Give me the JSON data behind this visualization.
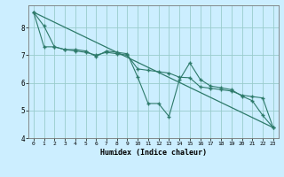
{
  "xlabel": "Humidex (Indice chaleur)",
  "bg_color": "#cceeff",
  "grid_color": "#99cccc",
  "line_color": "#2d7a6a",
  "xlim": [
    -0.5,
    23.5
  ],
  "ylim": [
    4.0,
    8.8
  ],
  "yticks": [
    4,
    5,
    6,
    7,
    8
  ],
  "xticks": [
    0,
    1,
    2,
    3,
    4,
    5,
    6,
    7,
    8,
    9,
    10,
    11,
    12,
    13,
    14,
    15,
    16,
    17,
    18,
    19,
    20,
    21,
    22,
    23
  ],
  "series1_x": [
    0,
    1,
    2,
    3,
    4,
    5,
    6,
    7,
    8,
    9,
    10,
    11,
    12,
    13,
    14,
    15,
    16,
    17,
    18,
    19,
    20,
    21,
    22,
    23
  ],
  "series1_y": [
    8.55,
    8.05,
    7.3,
    7.2,
    7.2,
    7.15,
    6.95,
    7.15,
    7.1,
    7.05,
    6.2,
    5.25,
    5.25,
    4.78,
    6.1,
    6.72,
    6.12,
    5.88,
    5.82,
    5.75,
    5.52,
    5.35,
    4.82,
    4.38
  ],
  "series2_x": [
    0,
    1,
    2,
    3,
    4,
    5,
    6,
    7,
    8,
    9,
    10,
    11,
    12,
    13,
    14,
    15,
    16,
    17,
    18,
    19,
    20,
    21,
    22,
    23
  ],
  "series2_y": [
    8.55,
    7.3,
    7.3,
    7.2,
    7.15,
    7.1,
    7.0,
    7.1,
    7.05,
    7.0,
    6.5,
    6.45,
    6.4,
    6.35,
    6.2,
    6.18,
    5.85,
    5.8,
    5.75,
    5.7,
    5.55,
    5.5,
    5.45,
    4.38
  ],
  "series3_x": [
    0,
    23
  ],
  "series3_y": [
    8.55,
    4.38
  ]
}
